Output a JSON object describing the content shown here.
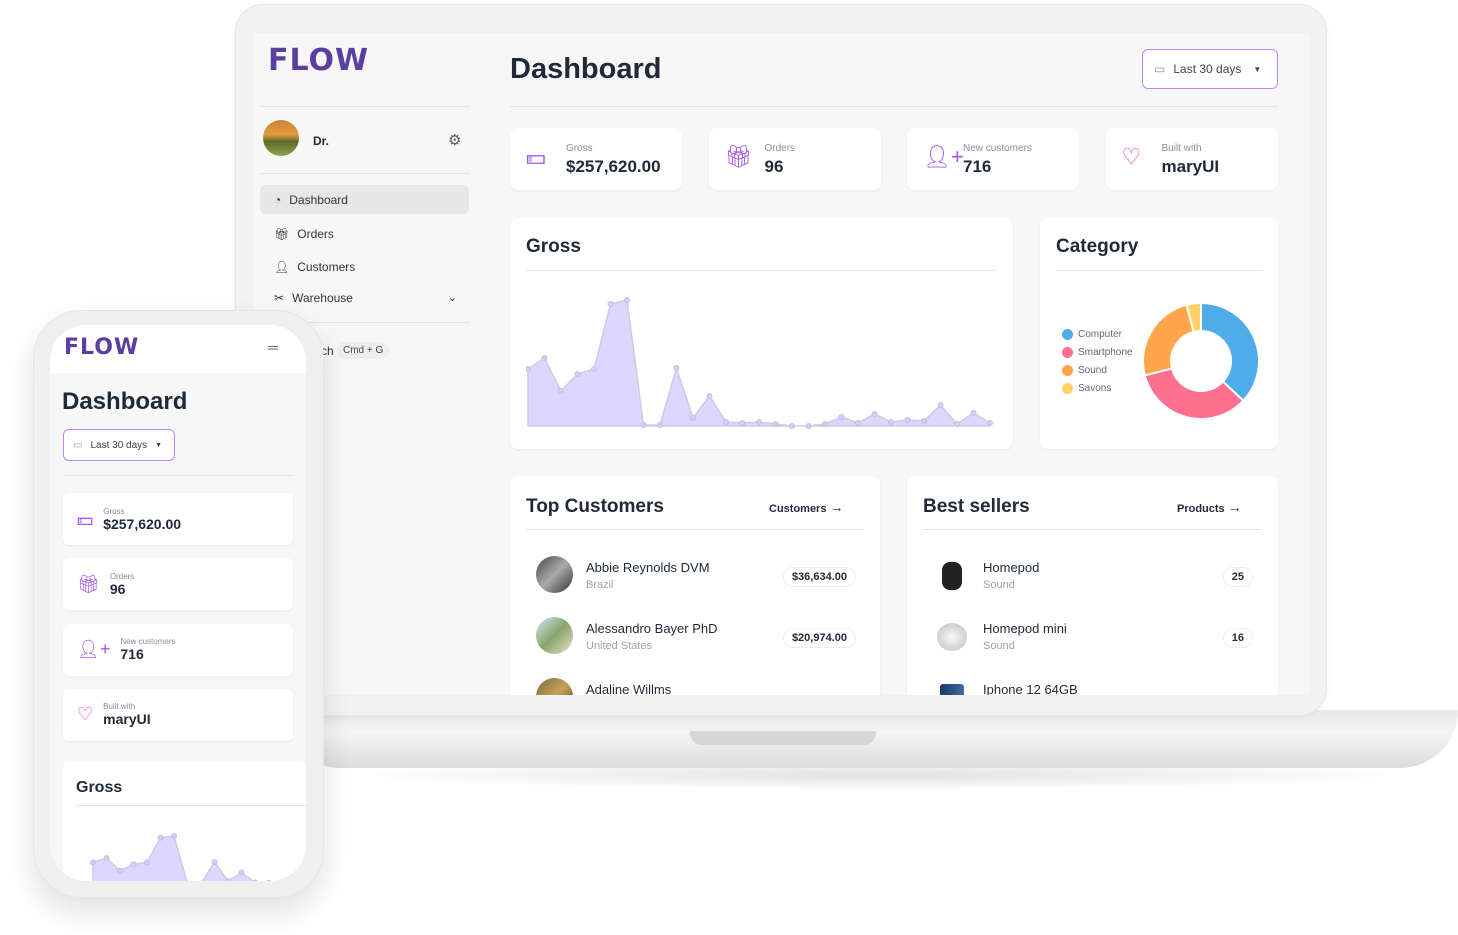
{
  "brand": {
    "logo": "FLOW",
    "accent": "#5b3fa0",
    "highlight": "#a855f7"
  },
  "user": {
    "name": "Dr.",
    "settings_icon": "gear-icon"
  },
  "sidebar": {
    "items": [
      {
        "label": "Dashboard",
        "icon": "chart-pie-icon",
        "active": true
      },
      {
        "label": "Orders",
        "icon": "gift-icon"
      },
      {
        "label": "Customers",
        "icon": "user-icon"
      },
      {
        "label": "Warehouse",
        "icon": "wrench-screwdriver-icon",
        "expandable": true
      }
    ],
    "search_partial": "ch",
    "search_shortcut": "Cmd + G"
  },
  "header": {
    "title": "Dashboard",
    "date_filter": "Last 30 days"
  },
  "stats": [
    {
      "label": "Gross",
      "value": "$257,620.00",
      "icon": "banknotes-icon"
    },
    {
      "label": "Orders",
      "value": "96",
      "icon": "gift-icon"
    },
    {
      "label": "New customers",
      "value": "716",
      "icon": "user-plus-icon"
    },
    {
      "label": "Built with",
      "value": "maryUI",
      "icon": "heart-icon"
    }
  ],
  "gross": {
    "title": "Gross"
  },
  "category": {
    "title": "Category"
  },
  "top_customers": {
    "title": "Top Customers",
    "link": "Customers",
    "rows": [
      {
        "name": "Abbie Reynolds DVM",
        "country": "Brazil",
        "amount": "$36,634.00"
      },
      {
        "name": "Alessandro Bayer PhD",
        "country": "United States",
        "amount": "$20,974.00"
      },
      {
        "name": "Adaline Willms",
        "country": "",
        "amount": ""
      }
    ]
  },
  "best_sellers": {
    "title": "Best sellers",
    "link": "Products",
    "rows": [
      {
        "name": "Homepod",
        "category": "Sound",
        "count": "25"
      },
      {
        "name": "Homepod mini",
        "category": "Sound",
        "count": "16"
      },
      {
        "name": "Iphone 12 64GB",
        "category": "",
        "count": ""
      }
    ]
  },
  "chart_data": [
    {
      "type": "area",
      "title": "Gross",
      "grid": false,
      "axes": false,
      "values": [
        57,
        68,
        35,
        52,
        57,
        122,
        126,
        1,
        1,
        58,
        8,
        30,
        4,
        3,
        4,
        2,
        0,
        0,
        2,
        9,
        3,
        12,
        4,
        6,
        5,
        21,
        2,
        13,
        3
      ],
      "color": "#ddd6fe"
    },
    {
      "type": "pie",
      "title": "Category",
      "donut": true,
      "legend": "left",
      "categories": [
        "Computer",
        "Smartphone",
        "Sound",
        "Savons"
      ],
      "values": [
        37,
        34,
        25,
        4
      ],
      "colors": [
        "#4facea",
        "#ff6f8f",
        "#ffa64d",
        "#ffd166"
      ]
    }
  ]
}
